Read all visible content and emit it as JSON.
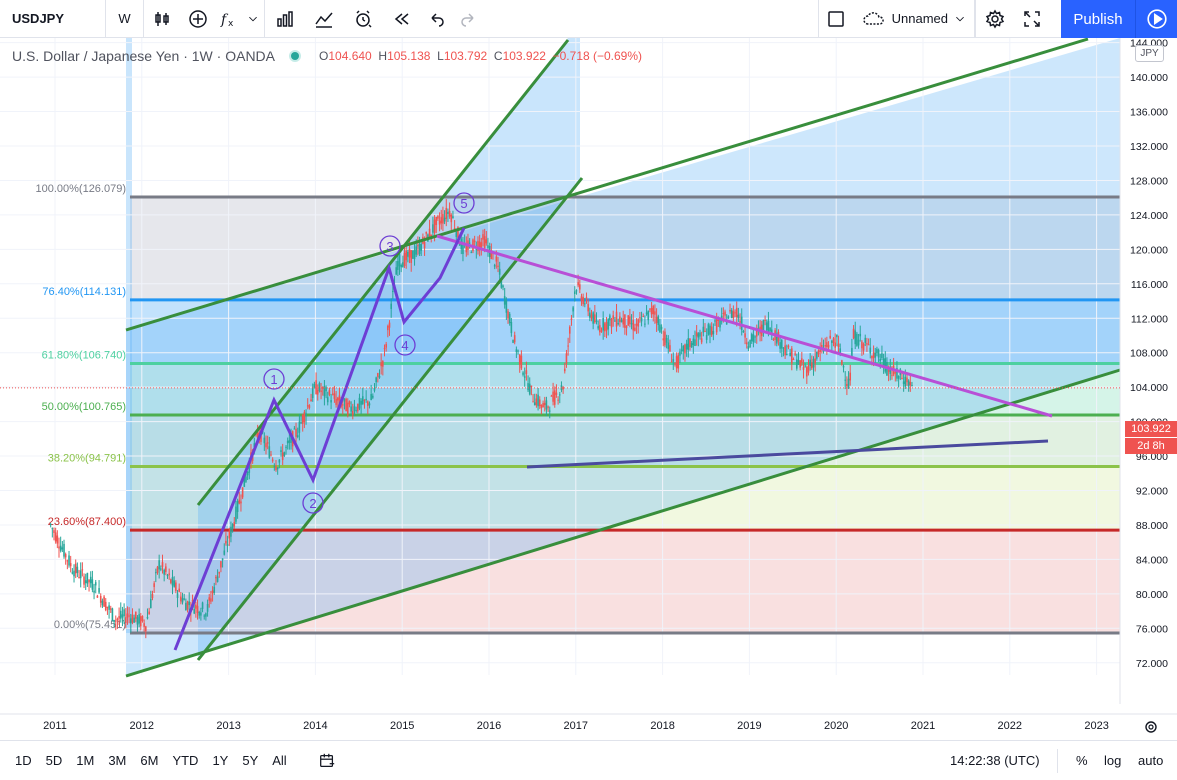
{
  "toolbar": {
    "symbol": "USDJPY",
    "interval": "W",
    "layout_name": "Unnamed",
    "publish_label": "Publish",
    "icons": [
      "bar-style-icon",
      "add-indicator-icon",
      "fx-icon",
      "chevron-down-icon",
      "compare-icon",
      "templates-icon",
      "alert-icon",
      "replay-icon",
      "undo-icon",
      "redo-icon",
      "layout-box-icon",
      "cloud-icon",
      "settings-icon",
      "fullscreen-icon",
      "camera-icon",
      "play-icon"
    ]
  },
  "legend": {
    "title": "U.S. Dollar / Japanese Yen · 1W · OANDA",
    "o_key": "O",
    "o_val": "104.640",
    "h_key": "H",
    "h_val": "105.138",
    "l_key": "L",
    "l_val": "103.792",
    "c_key": "C",
    "c_val": "103.922",
    "change": "−0.718 (−0.69%)"
  },
  "currency_badge": "JPY",
  "price_axis": {
    "ticks": [
      "148.000",
      "144.000",
      "140.000",
      "136.000",
      "132.000",
      "128.000",
      "124.000",
      "120.000",
      "116.000",
      "112.000",
      "108.000",
      "104.000",
      "100.000",
      "96.000",
      "92.000",
      "88.000",
      "84.000",
      "80.000",
      "76.000",
      "72.000"
    ],
    "last_price": "103.922",
    "countdown": "2d 8h",
    "last_color": "#ef5350"
  },
  "time_axis": {
    "labels": [
      "2011",
      "2012",
      "2013",
      "2014",
      "2015",
      "2016",
      "2017",
      "2018",
      "2019",
      "2020",
      "2021",
      "2022",
      "2023"
    ]
  },
  "fib_levels": [
    {
      "label": "100.00%(126.079)",
      "price": 126.079,
      "color": "#787b86"
    },
    {
      "label": "76.40%(114.131)",
      "price": 114.131,
      "color": "#2196f3"
    },
    {
      "label": "61.80%(106.740)",
      "price": 106.74,
      "color": "#4dd0a0"
    },
    {
      "label": "50.00%(100.765)",
      "price": 100.765,
      "color": "#4caf50"
    },
    {
      "label": "38.20%(94.791)",
      "price": 94.791,
      "color": "#8bc34a"
    },
    {
      "label": "23.60%(87.400)",
      "price": 87.4,
      "color": "#c62828"
    },
    {
      "label": "0.00%(75.451)",
      "price": 75.451,
      "color": "#787b86"
    }
  ],
  "wave_labels": [
    "1",
    "2",
    "3",
    "4",
    "5"
  ],
  "bottom": {
    "ranges": [
      "1D",
      "5D",
      "1M",
      "3M",
      "6M",
      "YTD",
      "1Y",
      "5Y",
      "All"
    ],
    "clock": "14:22:38 (UTC)",
    "pct": "%",
    "log": "log",
    "auto": "auto"
  },
  "colors": {
    "bull": "#26a69a",
    "bear": "#ef5350",
    "wave": "#6d3ed4",
    "channel": "#388e3c",
    "resistance": "#b84fd6",
    "support": "#4a4a9e",
    "accent": "#2962ff"
  }
}
